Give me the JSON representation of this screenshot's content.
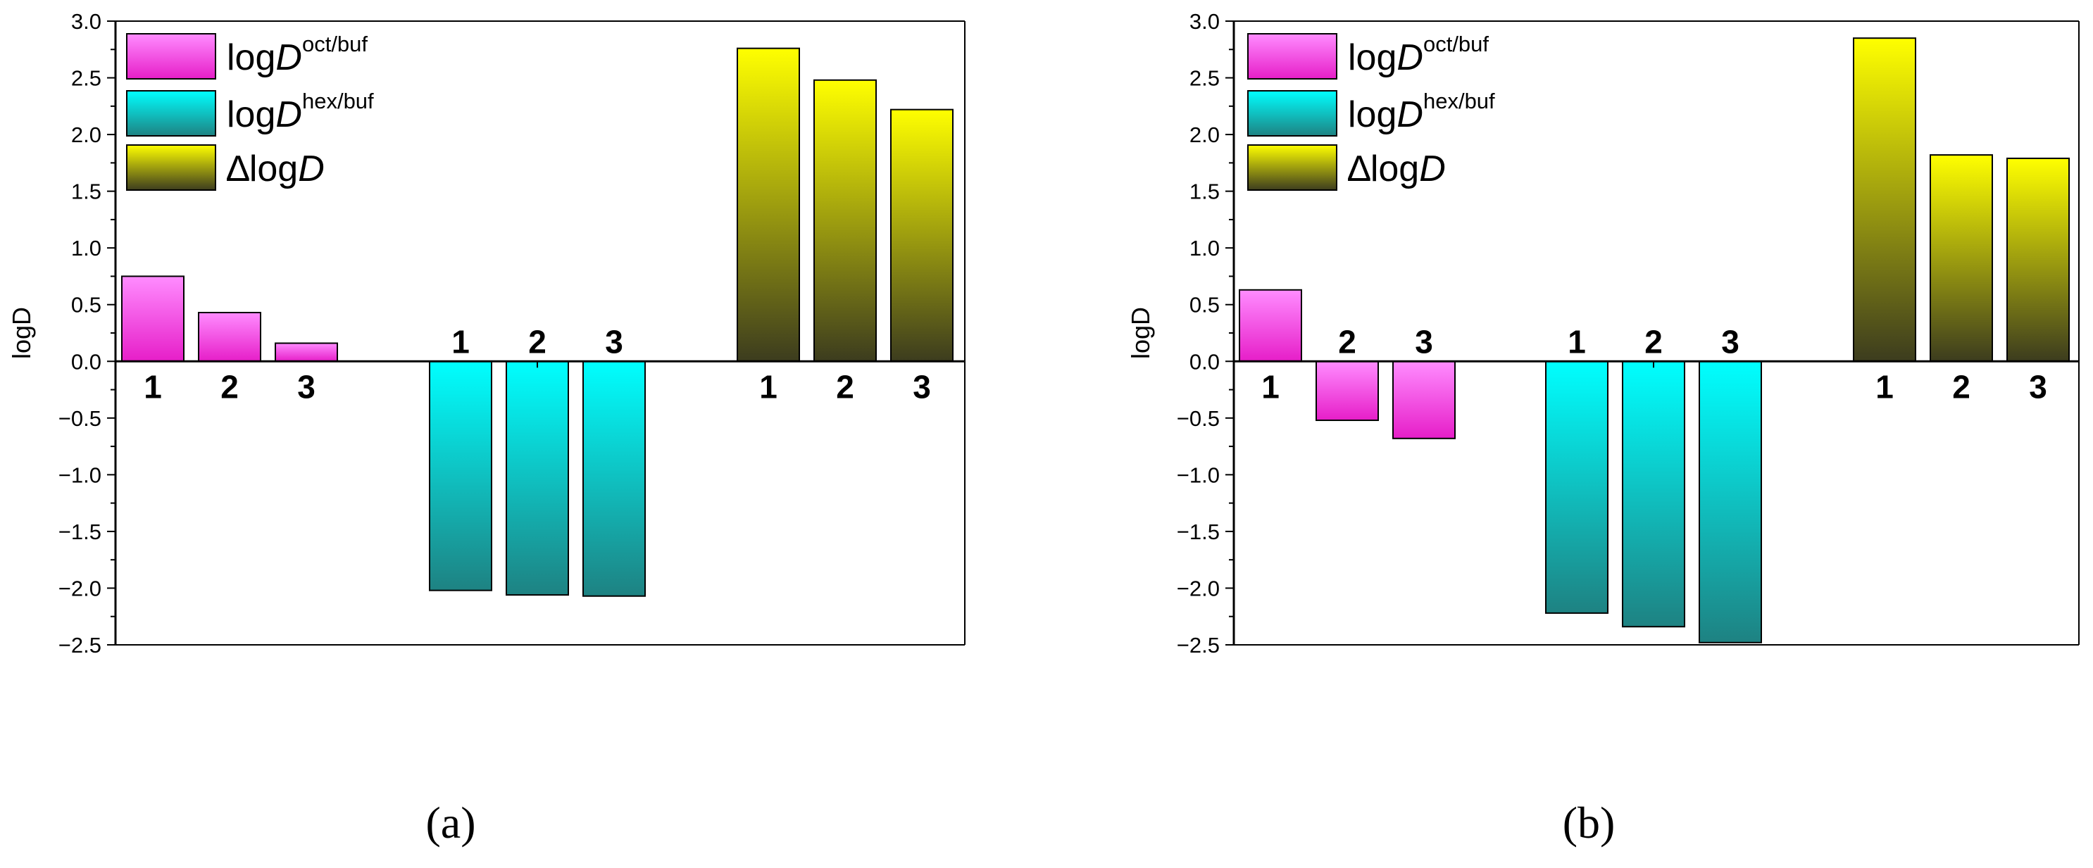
{
  "colors": {
    "magenta_top": "#ff8cff",
    "magenta_bottom": "#e61ec8",
    "cyan_top": "#00ffff",
    "cyan_bottom": "#1e8282",
    "yellow_top": "#ffff00",
    "yellow_bottom": "#3c3c1e",
    "axis": "#000000"
  },
  "chart_data": [
    {
      "type": "bar",
      "panel_label": "(a)",
      "ylabel": "logD",
      "ylim": [
        -2.5,
        3.0
      ],
      "yticks": [
        "3.0",
        "2.5",
        "2.0",
        "1.5",
        "1.0",
        "0.5",
        "0.0",
        "-0.5",
        "-1.0",
        "-1.5",
        "-2.0",
        "-2.5"
      ],
      "legend": [
        {
          "base": "log",
          "italic": "D",
          "sup": "oct/buf"
        },
        {
          "base": "log",
          "italic": "D",
          "sup": "hex/buf"
        },
        {
          "base": "∆log",
          "italic": "D",
          "sup": ""
        }
      ],
      "legend_position": "top-left",
      "series": [
        {
          "categories": [
            "1",
            "2",
            "3"
          ],
          "values": [
            0.75,
            0.43,
            0.16
          ]
        },
        {
          "categories": [
            "1",
            "2",
            "3"
          ],
          "values": [
            -2.02,
            -2.06,
            -2.07
          ]
        },
        {
          "categories": [
            "1",
            "2",
            "3"
          ],
          "values": [
            2.76,
            2.48,
            2.22
          ]
        }
      ]
    },
    {
      "type": "bar",
      "panel_label": "(b)",
      "ylabel": "logD",
      "ylim": [
        -2.5,
        3.0
      ],
      "yticks": [
        "3.0",
        "2.5",
        "2.0",
        "1.5",
        "1.0",
        "0.5",
        "0.0",
        "-0.5",
        "-1.0",
        "-1.5",
        "-2.0",
        "-2.5"
      ],
      "legend": [
        {
          "base": "log",
          "italic": "D",
          "sup": "oct/buf"
        },
        {
          "base": "log",
          "italic": "D",
          "sup": "hex/buf"
        },
        {
          "base": "∆log",
          "italic": "D",
          "sup": ""
        }
      ],
      "legend_position": "top-left",
      "series": [
        {
          "categories": [
            "1",
            "2",
            "3"
          ],
          "values": [
            0.63,
            -0.52,
            -0.68
          ]
        },
        {
          "categories": [
            "1",
            "2",
            "3"
          ],
          "values": [
            -2.22,
            -2.34,
            -2.48
          ]
        },
        {
          "categories": [
            "1",
            "2",
            "3"
          ],
          "values": [
            2.85,
            1.82,
            1.79
          ]
        }
      ]
    }
  ]
}
